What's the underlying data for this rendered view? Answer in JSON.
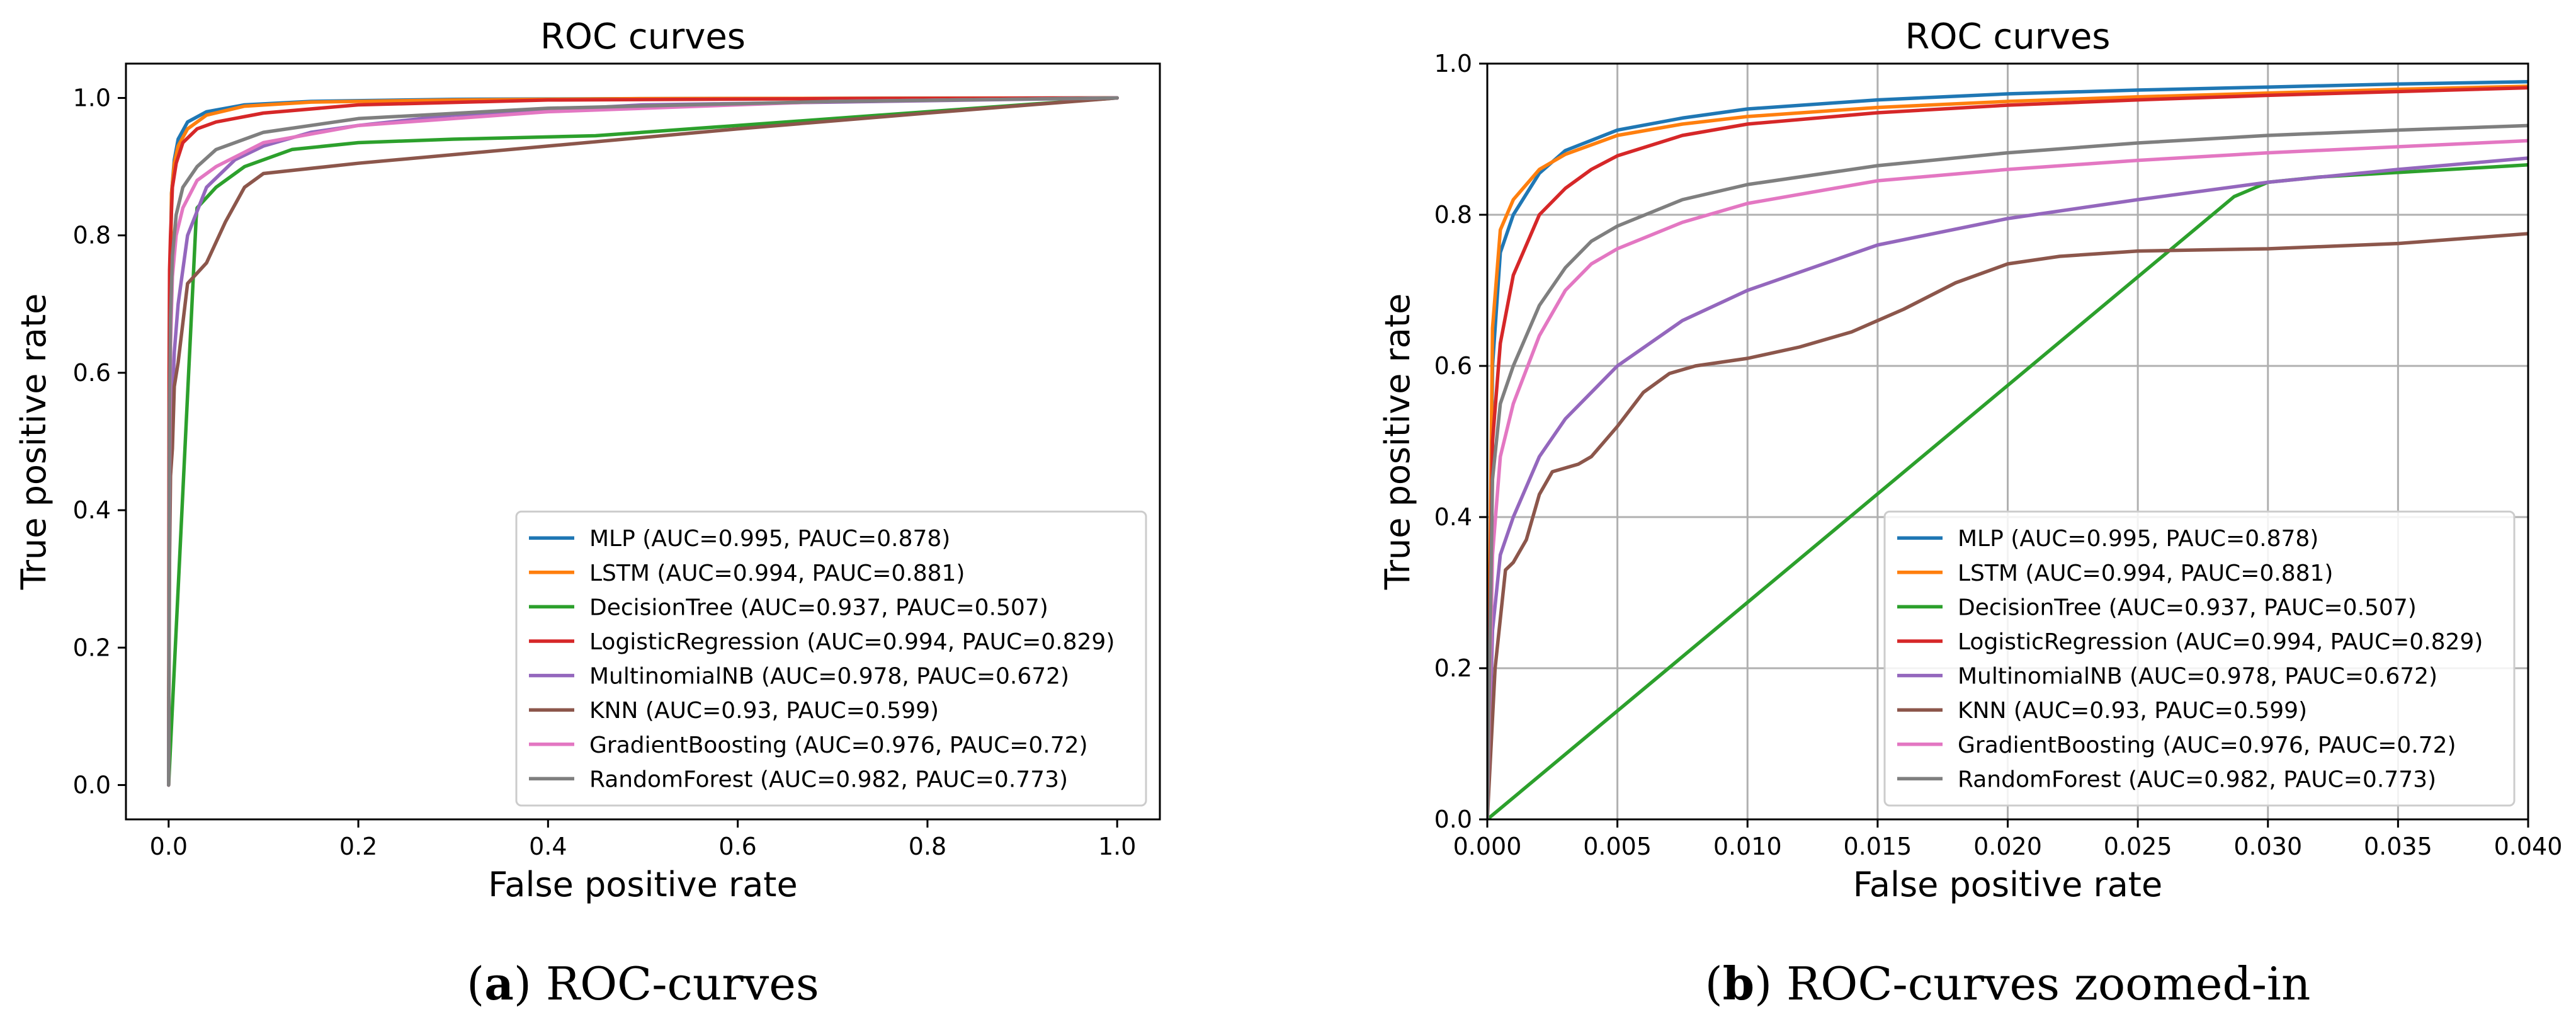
{
  "chart_data": [
    {
      "type": "line",
      "title": "ROC curves",
      "xlabel": "False positive rate",
      "ylabel": "True positive rate",
      "xlim": [
        -0.045,
        1.045
      ],
      "ylim": [
        -0.05,
        1.05
      ],
      "grid": false,
      "legend_position": "lower-right",
      "xticks": [
        0.0,
        0.2,
        0.4,
        0.6,
        0.8,
        1.0
      ],
      "xtick_labels": [
        "0.0",
        "0.2",
        "0.4",
        "0.6",
        "0.8",
        "1.0"
      ],
      "yticks": [
        0.0,
        0.2,
        0.4,
        0.6,
        0.8,
        1.0
      ],
      "ytick_labels": [
        "0.0",
        "0.2",
        "0.4",
        "0.6",
        "0.8",
        "1.0"
      ],
      "caption": {
        "letter": "a",
        "text": "ROC-curves"
      },
      "series": [
        {
          "name": "MLP (AUC=0.995, PAUC=0.878)",
          "color": "#1f77b4",
          "x": [
            0,
            0.001,
            0.003,
            0.006,
            0.01,
            0.02,
            0.04,
            0.08,
            0.15,
            0.3,
            0.5,
            1.0
          ],
          "y": [
            0,
            0.6,
            0.86,
            0.91,
            0.94,
            0.965,
            0.98,
            0.99,
            0.995,
            0.998,
            0.999,
            1.0
          ]
        },
        {
          "name": "LSTM (AUC=0.994, PAUC=0.881)",
          "color": "#ff7f0e",
          "x": [
            0,
            0.001,
            0.003,
            0.006,
            0.01,
            0.02,
            0.04,
            0.08,
            0.15,
            0.3,
            0.5,
            1.0
          ],
          "y": [
            0,
            0.6,
            0.86,
            0.905,
            0.93,
            0.955,
            0.975,
            0.988,
            0.994,
            0.997,
            0.999,
            1.0
          ]
        },
        {
          "name": "DecisionTree (AUC=0.937, PAUC=0.507)",
          "color": "#2ca02c",
          "x": [
            0,
            0.029,
            0.03,
            0.05,
            0.08,
            0.13,
            0.2,
            0.3,
            0.45,
            0.6,
            0.8,
            1.0
          ],
          "y": [
            0,
            0.825,
            0.84,
            0.87,
            0.9,
            0.925,
            0.935,
            0.94,
            0.945,
            0.96,
            0.98,
            1.0
          ]
        },
        {
          "name": "LogisticRegression (AUC=0.994, PAUC=0.829)",
          "color": "#d62728",
          "x": [
            0,
            0.0005,
            0.001,
            0.002,
            0.004,
            0.008,
            0.015,
            0.03,
            0.05,
            0.1,
            0.2,
            0.4,
            0.7,
            1.0
          ],
          "y": [
            0,
            0.6,
            0.75,
            0.8,
            0.87,
            0.905,
            0.935,
            0.955,
            0.965,
            0.978,
            0.99,
            0.997,
            0.999,
            1.0
          ]
        },
        {
          "name": "MultinomialNB (AUC=0.978, PAUC=0.672)",
          "color": "#9467bd",
          "x": [
            0,
            0.001,
            0.003,
            0.006,
            0.01,
            0.02,
            0.04,
            0.07,
            0.1,
            0.15,
            0.2,
            0.3,
            0.5,
            1.0
          ],
          "y": [
            0,
            0.4,
            0.53,
            0.63,
            0.7,
            0.8,
            0.87,
            0.91,
            0.93,
            0.95,
            0.96,
            0.975,
            0.99,
            1.0
          ]
        },
        {
          "name": "KNN (AUC=0.93, PAUC=0.599)",
          "color": "#8c564b",
          "x": [
            0,
            0.001,
            0.002,
            0.004,
            0.006,
            0.01,
            0.02,
            0.04,
            0.06,
            0.08,
            0.1,
            0.2,
            0.4,
            0.6,
            0.8,
            1.0
          ],
          "y": [
            0,
            0.33,
            0.45,
            0.49,
            0.58,
            0.615,
            0.73,
            0.76,
            0.82,
            0.87,
            0.89,
            0.905,
            0.93,
            0.955,
            0.978,
            1.0
          ]
        },
        {
          "name": "GradientBoosting (AUC=0.976, PAUC=0.72)",
          "color": "#e377c2",
          "x": [
            0,
            0.001,
            0.002,
            0.004,
            0.008,
            0.015,
            0.03,
            0.05,
            0.1,
            0.2,
            0.4,
            0.7,
            1.0
          ],
          "y": [
            0,
            0.45,
            0.64,
            0.74,
            0.8,
            0.84,
            0.88,
            0.9,
            0.935,
            0.96,
            0.98,
            0.995,
            1.0
          ]
        },
        {
          "name": "RandomForest (AUC=0.982, PAUC=0.773)",
          "color": "#7f7f7f",
          "x": [
            0,
            0.001,
            0.002,
            0.004,
            0.008,
            0.015,
            0.03,
            0.05,
            0.1,
            0.2,
            0.4,
            0.7,
            1.0
          ],
          "y": [
            0,
            0.55,
            0.68,
            0.77,
            0.83,
            0.87,
            0.9,
            0.925,
            0.95,
            0.97,
            0.985,
            0.995,
            1.0
          ]
        }
      ]
    },
    {
      "type": "line",
      "title": "ROC curves",
      "xlabel": "False positive rate",
      "ylabel": "True positive rate",
      "xlim": [
        0.0,
        0.04
      ],
      "ylim": [
        0.0,
        1.0
      ],
      "grid": true,
      "legend_position": "lower-right",
      "xticks": [
        0.0,
        0.005,
        0.01,
        0.015,
        0.02,
        0.025,
        0.03,
        0.035,
        0.04
      ],
      "xtick_labels": [
        "0.000",
        "0.005",
        "0.010",
        "0.015",
        "0.020",
        "0.025",
        "0.030",
        "0.035",
        "0.040"
      ],
      "yticks": [
        0.0,
        0.2,
        0.4,
        0.6,
        0.8,
        1.0
      ],
      "ytick_labels": [
        "0.0",
        "0.2",
        "0.4",
        "0.6",
        "0.8",
        "1.0"
      ],
      "caption": {
        "letter": "b",
        "text": "ROC-curves zoomed-in"
      },
      "series": [
        {
          "name": "MLP (AUC=0.995, PAUC=0.878)",
          "color": "#1f77b4",
          "x": [
            0,
            0.0002,
            0.0005,
            0.001,
            0.002,
            0.003,
            0.005,
            0.0075,
            0.01,
            0.015,
            0.02,
            0.025,
            0.03,
            0.035,
            0.04
          ],
          "y": [
            0,
            0.6,
            0.75,
            0.8,
            0.855,
            0.885,
            0.912,
            0.928,
            0.94,
            0.952,
            0.96,
            0.965,
            0.969,
            0.973,
            0.976
          ]
        },
        {
          "name": "LSTM (AUC=0.994, PAUC=0.881)",
          "color": "#ff7f0e",
          "x": [
            0,
            0.0002,
            0.0005,
            0.001,
            0.002,
            0.003,
            0.005,
            0.0075,
            0.01,
            0.015,
            0.02,
            0.025,
            0.03,
            0.035,
            0.04
          ],
          "y": [
            0,
            0.65,
            0.78,
            0.82,
            0.86,
            0.88,
            0.905,
            0.92,
            0.93,
            0.942,
            0.95,
            0.956,
            0.961,
            0.966,
            0.97
          ]
        },
        {
          "name": "DecisionTree (AUC=0.937, PAUC=0.507)",
          "color": "#2ca02c",
          "x": [
            0,
            0.0287,
            0.03,
            0.032,
            0.035,
            0.04
          ],
          "y": [
            0,
            0.824,
            0.843,
            0.85,
            0.856,
            0.866
          ]
        },
        {
          "name": "LogisticRegression (AUC=0.994, PAUC=0.829)",
          "color": "#d62728",
          "x": [
            0,
            0.0002,
            0.0005,
            0.001,
            0.0015,
            0.002,
            0.003,
            0.004,
            0.005,
            0.0075,
            0.01,
            0.015,
            0.02,
            0.025,
            0.03,
            0.035,
            0.04
          ],
          "y": [
            0,
            0.5,
            0.63,
            0.72,
            0.76,
            0.8,
            0.835,
            0.86,
            0.878,
            0.905,
            0.92,
            0.935,
            0.945,
            0.952,
            0.958,
            0.963,
            0.968
          ]
        },
        {
          "name": "MultinomialNB (AUC=0.978, PAUC=0.672)",
          "color": "#9467bd",
          "x": [
            0,
            0.0002,
            0.0005,
            0.001,
            0.002,
            0.003,
            0.005,
            0.0075,
            0.01,
            0.015,
            0.02,
            0.025,
            0.03,
            0.035,
            0.04
          ],
          "y": [
            0,
            0.25,
            0.35,
            0.4,
            0.48,
            0.53,
            0.6,
            0.66,
            0.7,
            0.76,
            0.795,
            0.82,
            0.843,
            0.86,
            0.875
          ]
        },
        {
          "name": "KNN (AUC=0.93, PAUC=0.599)",
          "color": "#8c564b",
          "x": [
            0,
            0.0003,
            0.0007,
            0.001,
            0.0015,
            0.002,
            0.0025,
            0.003,
            0.0035,
            0.004,
            0.0045,
            0.005,
            0.006,
            0.007,
            0.008,
            0.009,
            0.01,
            0.012,
            0.014,
            0.016,
            0.018,
            0.02,
            0.022,
            0.025,
            0.03,
            0.035,
            0.04
          ],
          "y": [
            0,
            0.2,
            0.33,
            0.34,
            0.37,
            0.43,
            0.46,
            0.465,
            0.47,
            0.48,
            0.5,
            0.52,
            0.565,
            0.59,
            0.6,
            0.605,
            0.61,
            0.625,
            0.645,
            0.675,
            0.71,
            0.735,
            0.745,
            0.752,
            0.755,
            0.762,
            0.775
          ]
        },
        {
          "name": "GradientBoosting (AUC=0.976, PAUC=0.72)",
          "color": "#e377c2",
          "x": [
            0,
            0.0002,
            0.0005,
            0.001,
            0.002,
            0.003,
            0.004,
            0.005,
            0.0075,
            0.01,
            0.015,
            0.02,
            0.025,
            0.03,
            0.035,
            0.04
          ],
          "y": [
            0,
            0.35,
            0.48,
            0.55,
            0.64,
            0.7,
            0.735,
            0.755,
            0.79,
            0.815,
            0.845,
            0.86,
            0.872,
            0.882,
            0.89,
            0.898
          ]
        },
        {
          "name": "RandomForest (AUC=0.982, PAUC=0.773)",
          "color": "#7f7f7f",
          "x": [
            0,
            0.0002,
            0.0005,
            0.001,
            0.002,
            0.003,
            0.004,
            0.005,
            0.0075,
            0.01,
            0.015,
            0.02,
            0.025,
            0.03,
            0.035,
            0.04
          ],
          "y": [
            0,
            0.45,
            0.55,
            0.6,
            0.68,
            0.73,
            0.765,
            0.785,
            0.82,
            0.84,
            0.865,
            0.882,
            0.895,
            0.905,
            0.912,
            0.918
          ]
        }
      ]
    }
  ]
}
